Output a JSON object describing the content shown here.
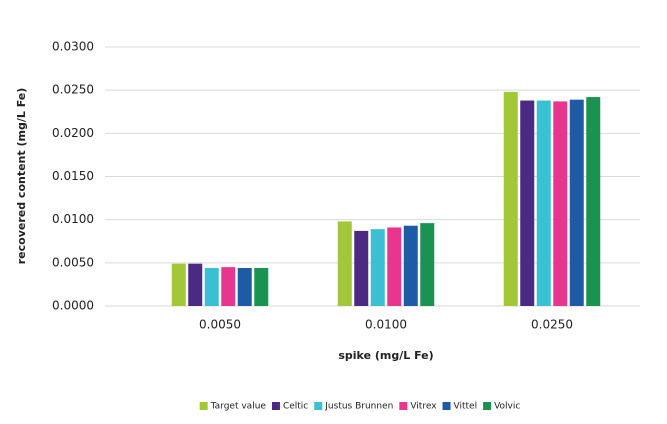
{
  "chart_data": {
    "type": "bar",
    "x_label": "spike (mg/L Fe)",
    "y_label": "recovered content (mg/L Fe)",
    "categories": [
      "0.0050",
      "0.0100",
      "0.0250"
    ],
    "series": [
      {
        "name": "Target value",
        "color": "#a4c639",
        "values": [
          0.0049,
          0.0098,
          0.0248
        ]
      },
      {
        "name": "Celtic",
        "color": "#4b2a83",
        "values": [
          0.0049,
          0.0087,
          0.0238
        ]
      },
      {
        "name": "Justus Brunnen",
        "color": "#3bbfd3",
        "values": [
          0.0044,
          0.0089,
          0.0238
        ]
      },
      {
        "name": "Vitrex",
        "color": "#e8368f",
        "values": [
          0.0045,
          0.0091,
          0.0237
        ]
      },
      {
        "name": "Vittel",
        "color": "#1f5aa6",
        "values": [
          0.0044,
          0.0093,
          0.0239
        ]
      },
      {
        "name": "Volvic",
        "color": "#1a9350",
        "values": [
          0.0044,
          0.0096,
          0.0242
        ]
      }
    ],
    "ylim": [
      0,
      0.03
    ],
    "yticks": [
      {
        "value": 0,
        "label": "0.0000"
      },
      {
        "value": 0.005,
        "label": "0.0050"
      },
      {
        "value": 0.01,
        "label": "0.0100"
      },
      {
        "value": 0.015,
        "label": "0.0150"
      },
      {
        "value": 0.02,
        "label": "0.0200"
      },
      {
        "value": 0.025,
        "label": "0.0250"
      },
      {
        "value": 0.03,
        "label": "0.0300"
      }
    ],
    "grid": true,
    "legend": "bottom"
  }
}
